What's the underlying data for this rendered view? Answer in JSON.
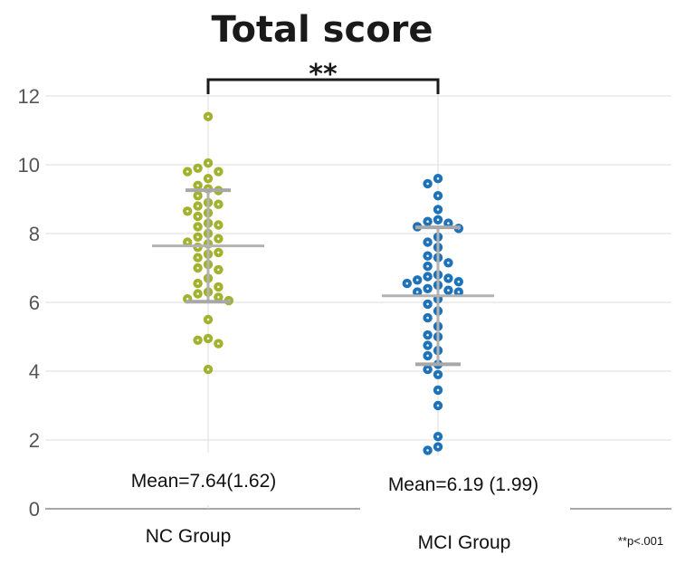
{
  "chart_data": {
    "type": "scatter",
    "title": "Total score",
    "ylim": [
      0,
      12
    ],
    "yticks": [
      0,
      2,
      4,
      6,
      8,
      10,
      12
    ],
    "grid": true,
    "categories": [
      "NC Group",
      "MCI Group"
    ],
    "significance": {
      "label": "**",
      "between": [
        "NC Group",
        "MCI Group"
      ]
    },
    "footnote": "**p<.001",
    "series": [
      {
        "name": "NC Group",
        "color": "#a3b22e",
        "mean": 7.64,
        "sd": 1.62,
        "mean_label": "Mean=7.64(1.62)",
        "values": [
          11.4,
          10.05,
          9.9,
          9.8,
          9.8,
          9.6,
          9.4,
          9.3,
          9.25,
          9.1,
          8.9,
          8.85,
          8.8,
          8.65,
          8.6,
          8.5,
          8.3,
          8.25,
          8.2,
          8.0,
          7.9,
          7.85,
          7.75,
          7.7,
          7.6,
          7.45,
          7.4,
          7.3,
          7.1,
          7.0,
          6.95,
          6.7,
          6.55,
          6.45,
          6.3,
          6.25,
          6.15,
          6.1,
          6.05,
          5.5,
          4.95,
          4.9,
          4.8,
          4.05
        ]
      },
      {
        "name": "MCI Group",
        "color": "#1e72b8",
        "mean": 6.19,
        "sd": 1.99,
        "mean_label": "Mean=6.19 (1.99)",
        "values": [
          9.6,
          9.45,
          9.1,
          8.7,
          8.4,
          8.35,
          8.3,
          8.2,
          8.15,
          7.9,
          7.75,
          7.6,
          7.35,
          7.3,
          7.15,
          7.05,
          6.8,
          6.75,
          6.7,
          6.65,
          6.6,
          6.55,
          6.5,
          6.4,
          6.35,
          6.3,
          6.3,
          6.1,
          5.95,
          5.75,
          5.55,
          5.3,
          5.05,
          5.0,
          4.75,
          4.6,
          4.45,
          4.2,
          4.05,
          3.9,
          3.45,
          3.0,
          2.1,
          1.8,
          1.7
        ]
      }
    ]
  }
}
